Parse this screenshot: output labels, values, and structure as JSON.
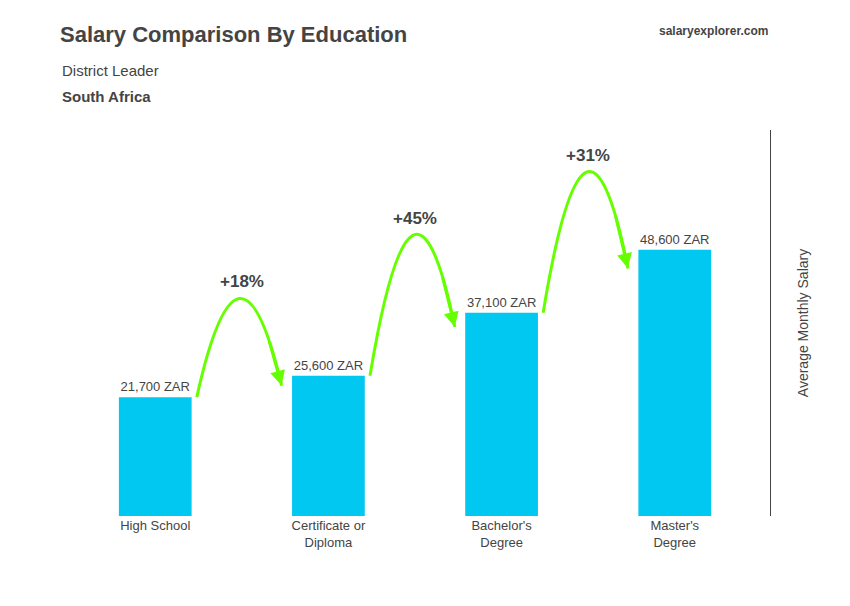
{
  "chart_data": {
    "type": "bar",
    "title": "Salary Comparison By Education",
    "subtitle": [
      "District Leader",
      "South Africa"
    ],
    "watermark": [
      "salary",
      "explorer",
      ".com"
    ],
    "ylabel": "Average Monthly Salary",
    "categories": [
      "High School",
      "Certificate or\nDiploma",
      "Bachelor's\nDegree",
      "Master's\nDegree"
    ],
    "values": [
      21700,
      25600,
      37100,
      48600
    ],
    "value_labels": [
      "21,700 ZAR",
      "25,600 ZAR",
      "37,100 ZAR",
      "48,600 ZAR"
    ],
    "data_labels": true,
    "color": "#00c8f0",
    "ylim": [
      0,
      70470
    ],
    "grid": false,
    "tick_labels": "x",
    "annotations": [
      {
        "text": "+18%",
        "from": "High School",
        "to": "Certificate or\nDiploma",
        "color": "#66ff00"
      },
      {
        "text": "+45%",
        "from": "Certificate or\nDiploma",
        "to": "Bachelor's\nDegree",
        "color": "#66ff00"
      },
      {
        "text": "+31%",
        "from": "Bachelor's\nDegree",
        "to": "Master's\nDegree",
        "color": "#66ff00"
      }
    ]
  }
}
